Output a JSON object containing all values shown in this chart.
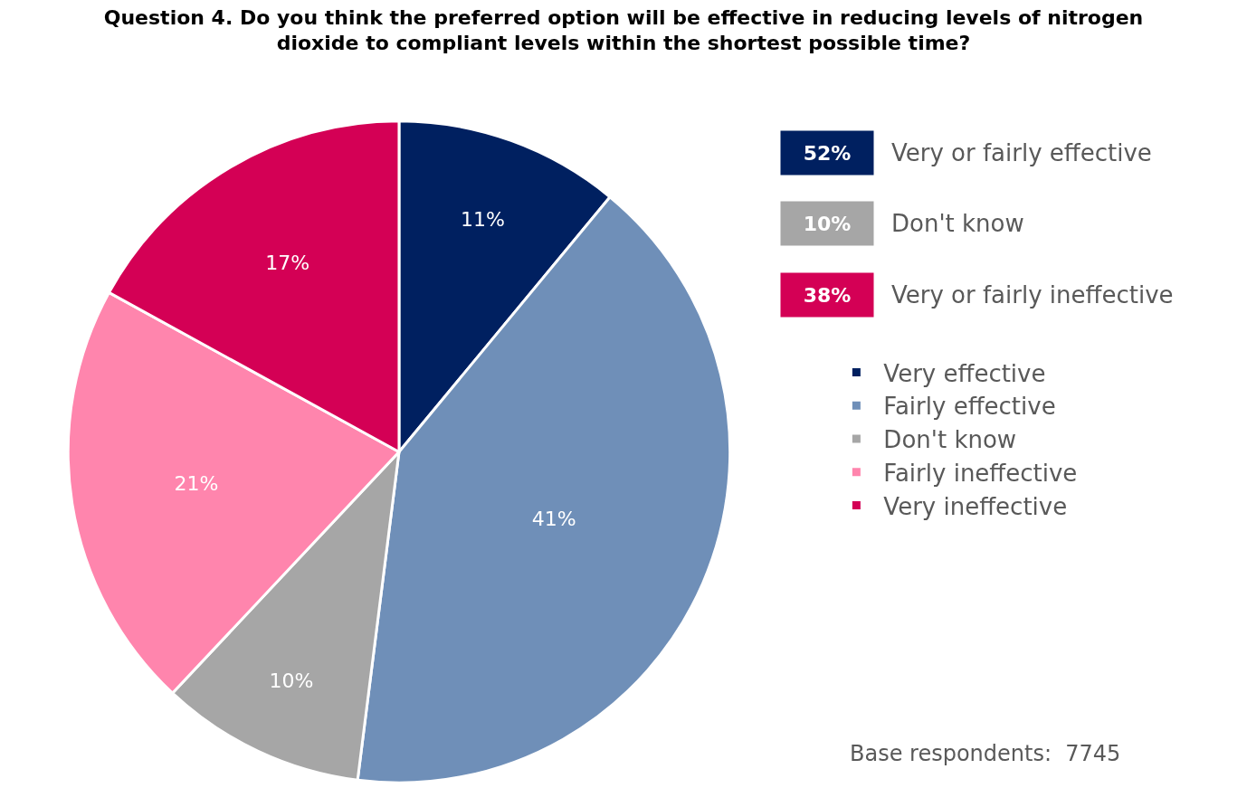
{
  "chart_data": {
    "type": "pie",
    "title": "Question 4. Do you think the preferred option will be effective in reducing levels of nitrogen dioxide to compliant levels within the shortest possible time?",
    "categories": [
      "Very effective",
      "Fairly effective",
      "Don't know",
      "Fairly ineffective",
      "Very ineffective"
    ],
    "values": [
      11,
      41,
      10,
      21,
      17
    ],
    "value_labels": [
      "11%",
      "41%",
      "10%",
      "21%",
      "17%"
    ],
    "colors": [
      "#002060",
      "#6F8FB8",
      "#A6A6A6",
      "#FF85AD",
      "#D40055"
    ],
    "legend": "right",
    "annotations": [
      "52%",
      "Very or fairly effective",
      "10%",
      "Don't know",
      "38%",
      "Very or fairly ineffective",
      "Base respondents:  7745"
    ]
  }
}
